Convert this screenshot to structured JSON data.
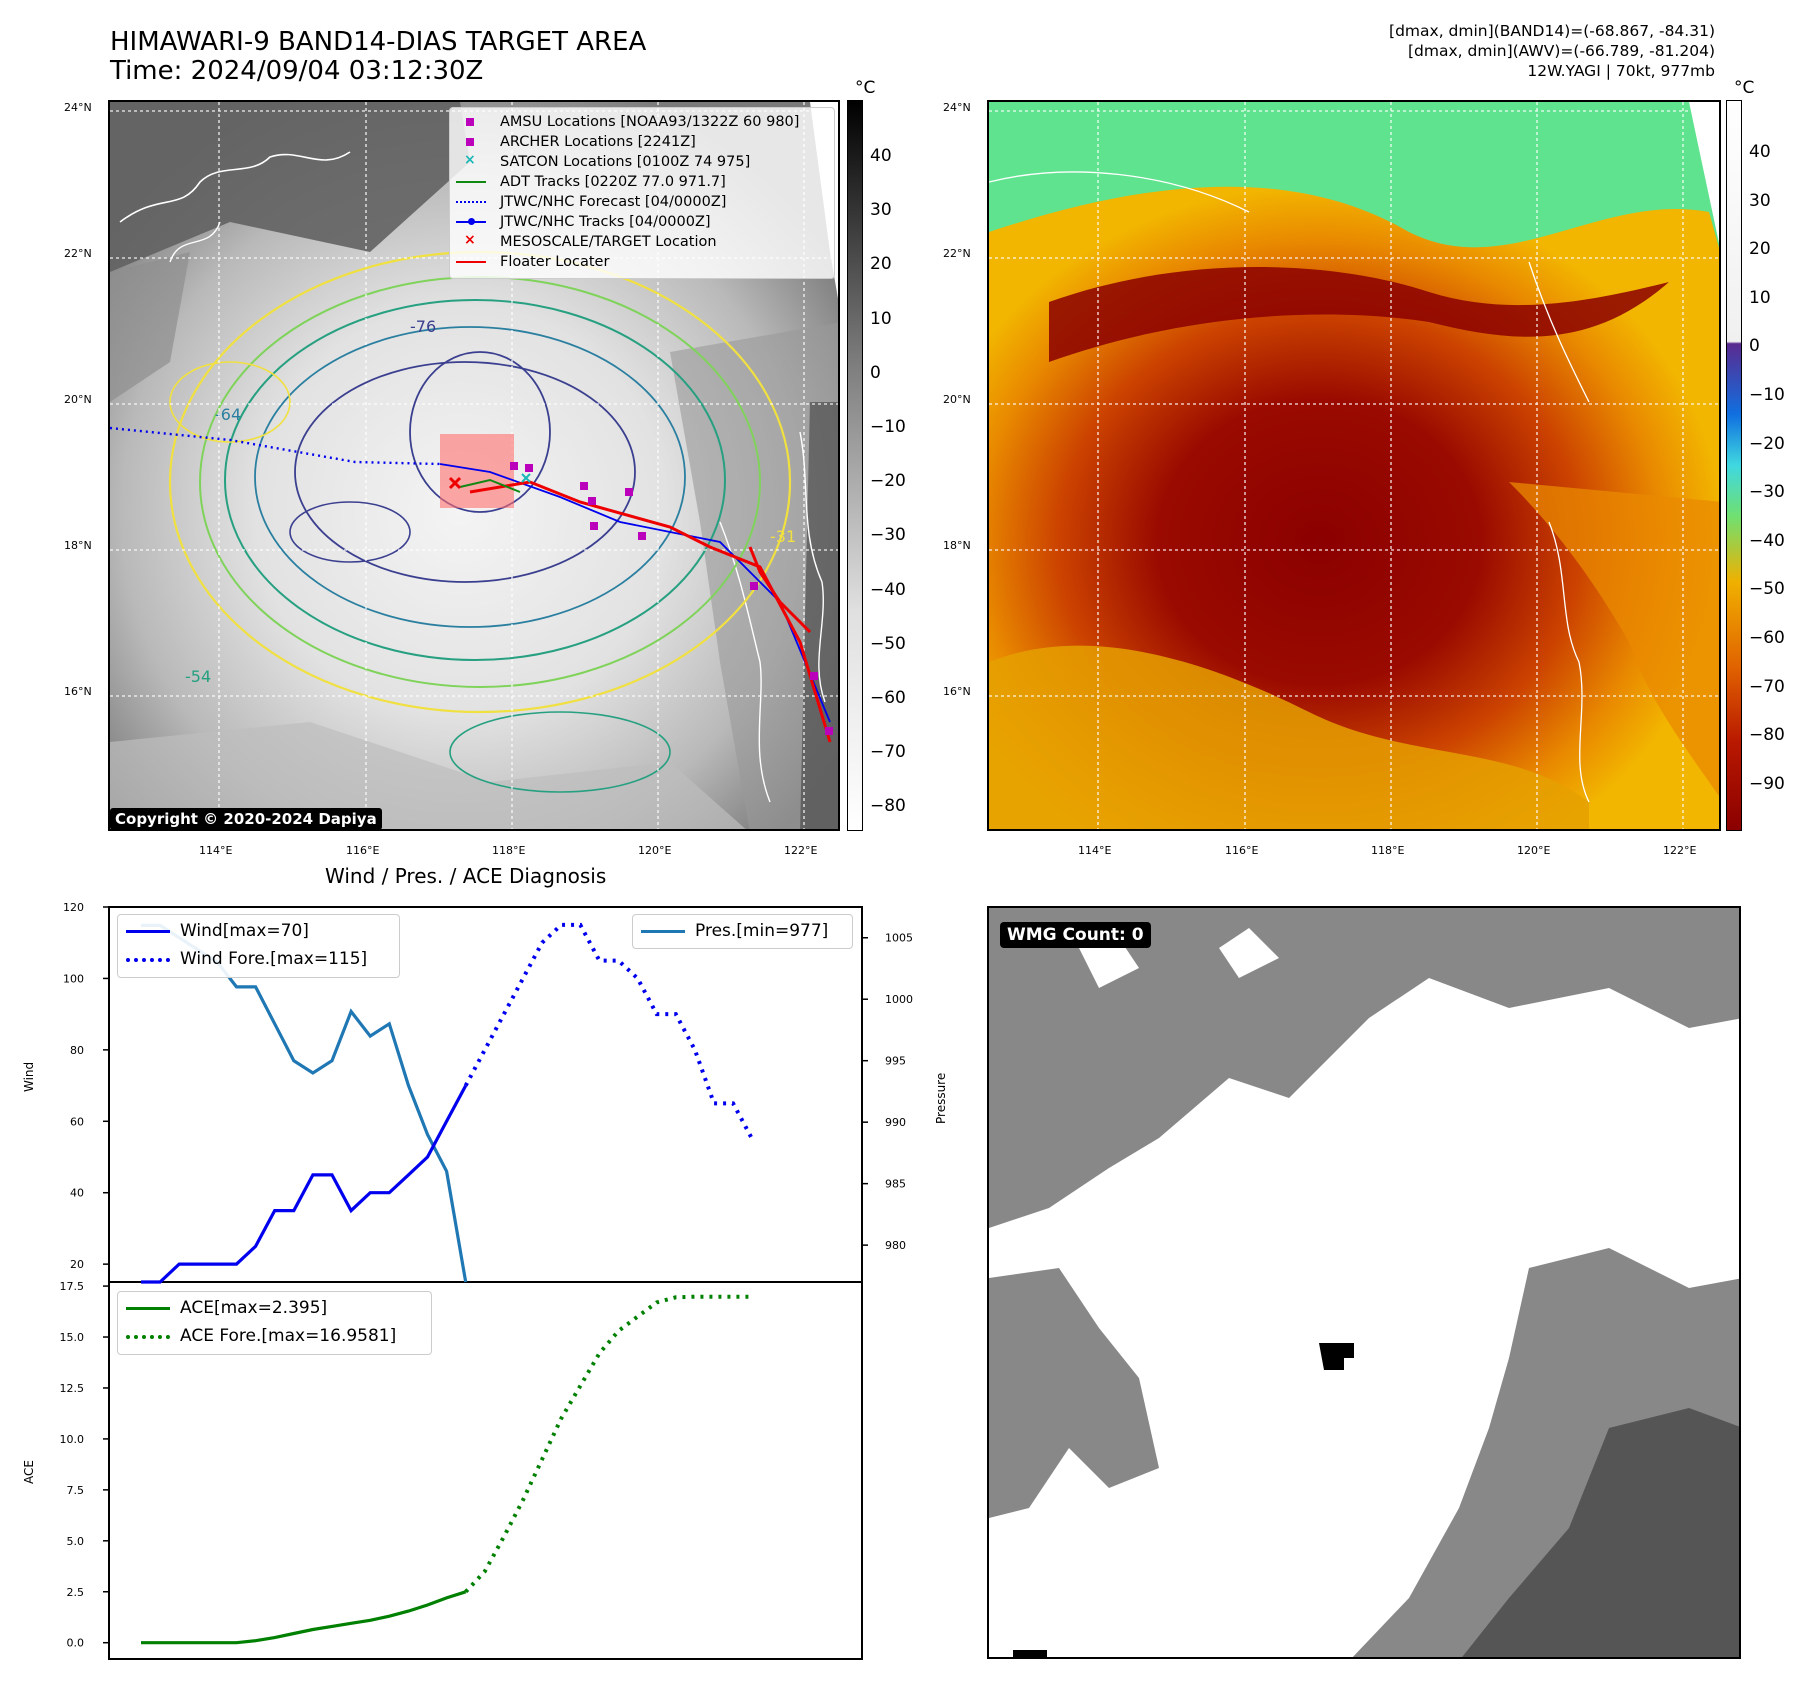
{
  "header": {
    "title_line1": "HIMAWARI-9 BAND14-DIAS TARGET AREA",
    "title_line2": "Time: 2024/09/04 03:12:30Z",
    "info_line1": "[dmax, dmin](BAND14)=(-68.867, -84.31)",
    "info_line2": "[dmax, dmin](AWV)=(-66.789, -81.204)",
    "info_line3": "12W.YAGI | 70kt, 977mb"
  },
  "map_axes": {
    "lat_labels": [
      "24°N",
      "22°N",
      "20°N",
      "18°N",
      "16°N"
    ],
    "lon_labels": [
      "114°E",
      "116°E",
      "118°E",
      "120°E",
      "122°E"
    ]
  },
  "ir_panel": {
    "colorbar_unit": "°C",
    "colorbar_ticks": [
      "40",
      "30",
      "20",
      "10",
      "0",
      "−10",
      "−20",
      "−30",
      "−40",
      "−50",
      "−60",
      "−70",
      "−80"
    ],
    "contour_labels": [
      "-31",
      "-54",
      "-64",
      "-76"
    ],
    "copyright": "Copyright © 2020-2024 Dapiya",
    "legend": [
      {
        "label": "AMSU Locations [NOAA93/1322Z 60 980]",
        "marker": "square",
        "color": "#bb00bb"
      },
      {
        "label": "ARCHER Locations [2241Z]",
        "marker": "square",
        "color": "#bb00bb"
      },
      {
        "label": "SATCON Locations [0100Z 74 975]",
        "marker": "x",
        "color": "#19b7b7"
      },
      {
        "label": "ADT Tracks [0220Z 77.0 971.7]",
        "marker": "line",
        "color": "#118811"
      },
      {
        "label": "JTWC/NHC Forecast [04/0000Z]",
        "marker": "dotted",
        "color": "#0000ee"
      },
      {
        "label": "JTWC/NHC Tracks [04/0000Z]",
        "marker": "line-dot",
        "color": "#0000ee"
      },
      {
        "label": "MESOSCALE/TARGET Location",
        "marker": "x",
        "color": "#ee0000"
      },
      {
        "label": "Floater Locater",
        "marker": "line",
        "color": "#ee0000"
      }
    ]
  },
  "awv_panel": {
    "colorbar_unit": "°C",
    "colorbar_ticks": [
      "40",
      "30",
      "20",
      "10",
      "0",
      "−10",
      "−20",
      "−30",
      "−40",
      "−50",
      "−60",
      "−70",
      "−80",
      "−90"
    ]
  },
  "wmg_panel": {
    "badge": "WMG Count: 0"
  },
  "chart_data": [
    {
      "type": "line",
      "title": "Wind / Pres. / ACE Diagnosis",
      "ylabel": "Wind",
      "y2label": "Pressure",
      "ylim": [
        15,
        120
      ],
      "yticks": [
        "120",
        "100",
        "80",
        "60",
        "40",
        "20"
      ],
      "y2lim": [
        977.0,
        1007.5
      ],
      "y2ticks": [
        "1005",
        "1000",
        "995",
        "990",
        "985",
        "980"
      ],
      "series": [
        {
          "name": "Wind[max=70]",
          "axis": "left",
          "style": "solid",
          "color": "#0000ee",
          "values": [
            15,
            15,
            20,
            20,
            20,
            20,
            25,
            35,
            35,
            45,
            45,
            35,
            40,
            40,
            45,
            50,
            60,
            70
          ]
        },
        {
          "name": "Wind Fore.[max=115]",
          "axis": "left",
          "style": "dotted",
          "color": "#0000ee",
          "values": [
            70,
            80,
            90,
            100,
            110,
            115,
            115,
            105,
            105,
            100,
            90,
            90,
            80,
            65,
            65,
            55
          ]
        },
        {
          "name": "Pres.[min=977]",
          "axis": "right",
          "style": "solid",
          "color": "#1f77b4",
          "values": [
            1006,
            1006,
            1005,
            1004,
            1003,
            1001,
            1001,
            998,
            995,
            994,
            995,
            999,
            997,
            998,
            993,
            989,
            986,
            977
          ]
        }
      ]
    },
    {
      "type": "line",
      "ylabel": "ACE",
      "ylim": [
        -0.8,
        17.7
      ],
      "yticks": [
        "17.5",
        "15.0",
        "12.5",
        "10.0",
        "7.5",
        "5.0",
        "2.5",
        "0.0"
      ],
      "series": [
        {
          "name": "ACE[max=2.395]",
          "style": "solid",
          "color": "#008000",
          "values": [
            0.0,
            0.0,
            0.0,
            0.0,
            0.0,
            0.0,
            0.1,
            0.25,
            0.45,
            0.65,
            0.8,
            0.95,
            1.1,
            1.3,
            1.55,
            1.85,
            2.2,
            2.5
          ]
        },
        {
          "name": "ACE Fore.[max=16.9581]",
          "style": "dotted",
          "color": "#008000",
          "values": [
            2.5,
            3.5,
            5.2,
            7.0,
            9.0,
            11.0,
            12.6,
            14.2,
            15.3,
            16.0,
            16.7,
            16.95,
            16.98,
            16.98,
            16.98,
            16.98
          ]
        }
      ]
    }
  ]
}
